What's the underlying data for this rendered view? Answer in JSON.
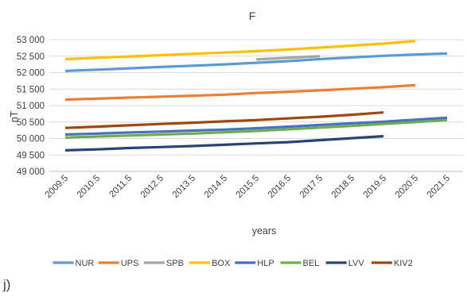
{
  "panel_label": "j)",
  "chart_data": {
    "type": "line",
    "title": "F",
    "xlabel": "years",
    "ylabel": "nT",
    "categories": [
      "2009.5",
      "2010.5",
      "2011.5",
      "2012.5",
      "2013.5",
      "2014.5",
      "2015.5",
      "2016.5",
      "2017.5",
      "2018.5",
      "2019.5",
      "2020.5",
      "2021.5"
    ],
    "ylim": [
      49000,
      53000
    ],
    "yticks": [
      49000,
      49500,
      50000,
      50500,
      51000,
      51500,
      52000,
      52500,
      53000
    ],
    "ytick_labels": [
      "49 000",
      "49 500",
      "50 000",
      "50 500",
      "51 000",
      "51 500",
      "52 000",
      "52 500",
      "53 000"
    ],
    "grid": "horizontal",
    "legend_position": "bottom",
    "series": [
      {
        "name": "NUR",
        "color": "#5b9bd5",
        "values": [
          52050,
          52090,
          52130,
          52170,
          52210,
          52250,
          52300,
          52350,
          52410,
          52460,
          52510,
          52550,
          52580
        ]
      },
      {
        "name": "UPS",
        "color": "#ed7d31",
        "values": [
          51180,
          51210,
          51240,
          51270,
          51300,
          51330,
          51380,
          51420,
          51460,
          51510,
          51560,
          51620,
          null
        ]
      },
      {
        "name": "SPB",
        "color": "#a5a5a5",
        "values": [
          null,
          null,
          null,
          null,
          null,
          null,
          52400,
          52450,
          52500,
          null,
          null,
          null,
          null
        ]
      },
      {
        "name": "BOX",
        "color": "#ffc000",
        "values": [
          52410,
          52450,
          52490,
          52530,
          52570,
          52610,
          52650,
          52700,
          52760,
          52820,
          52880,
          52960,
          null
        ]
      },
      {
        "name": "HLP",
        "color": "#4472c4",
        "values": [
          50120,
          50150,
          50180,
          50210,
          50240,
          50270,
          50310,
          50360,
          50410,
          50460,
          50510,
          50570,
          50630
        ]
      },
      {
        "name": "BEL",
        "color": "#70ad47",
        "values": [
          50030,
          50060,
          50090,
          50120,
          50150,
          50190,
          50230,
          50280,
          50330,
          50380,
          50440,
          50500,
          50560
        ]
      },
      {
        "name": "LVV",
        "color": "#264478",
        "values": [
          49640,
          49670,
          49710,
          49740,
          49770,
          49810,
          49850,
          49890,
          49950,
          50010,
          50070,
          null,
          null
        ]
      },
      {
        "name": "KIV2",
        "color": "#9e480e",
        "values": [
          50320,
          50360,
          50400,
          50440,
          50480,
          50520,
          50560,
          50610,
          50660,
          50720,
          50790,
          null,
          null
        ]
      }
    ]
  }
}
